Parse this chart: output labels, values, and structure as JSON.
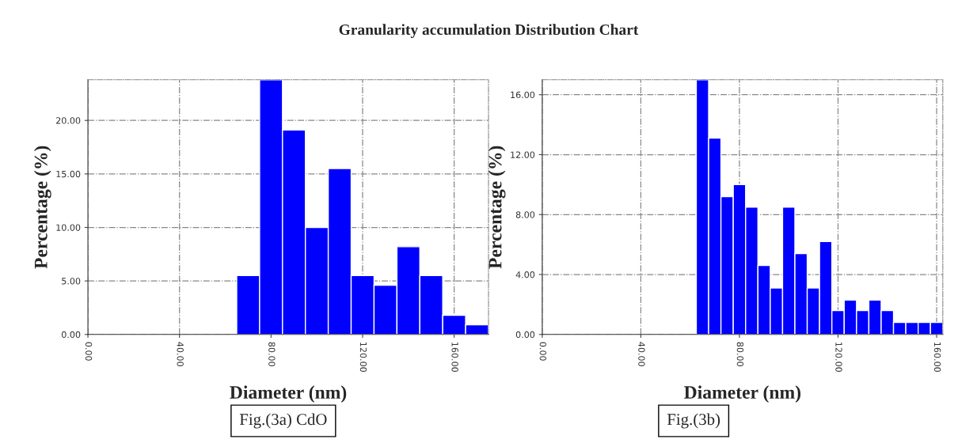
{
  "chart_data": [
    {
      "type": "histogram",
      "title": "Granularity accumulation Distribution Chart",
      "xlabel": "Diameter (nm)",
      "ylabel": "Percentage (%)",
      "bins": [
        65,
        75,
        85,
        95,
        105,
        115,
        125,
        135,
        145,
        155,
        165,
        175
      ],
      "values": [
        5.5,
        23.8,
        19.1,
        10,
        15.5,
        5.5,
        4.6,
        8.2,
        5.5,
        1.8,
        0.9
      ],
      "color": "#0000ff",
      "xlim": [
        0,
        175
      ],
      "ylim": [
        0,
        23.8
      ],
      "xticks": [
        {
          "value": 0,
          "label": "0.00"
        },
        {
          "value": 40,
          "label": "40.00"
        },
        {
          "value": 80,
          "label": "80.00"
        },
        {
          "value": 120,
          "label": "120.00"
        },
        {
          "value": 160,
          "label": "160.00"
        }
      ],
      "yticks": [
        {
          "value": 0,
          "label": "0.00"
        },
        {
          "value": 5,
          "label": "5.00"
        },
        {
          "value": 10,
          "label": "10.00"
        },
        {
          "value": 15,
          "label": "15.00"
        },
        {
          "value": 20,
          "label": "20.00"
        }
      ],
      "grid": true,
      "annotations": [
        "Fig.(3a) CdO"
      ]
    },
    {
      "type": "histogram",
      "xlabel": "Diameter (nm)",
      "ylabel": "Percentage (%)",
      "bins": [
        62.5,
        67.5,
        72.5,
        77.5,
        82.5,
        87.5,
        92.5,
        97.5,
        102.5,
        107.5,
        112.5,
        117.5,
        122.5,
        127.5,
        132.5,
        137.5,
        142.5,
        147.5,
        152.5,
        157.5,
        162.5
      ],
      "values": [
        17.0,
        13.1,
        9.2,
        10.0,
        8.5,
        4.6,
        3.1,
        8.5,
        5.4,
        3.1,
        6.2,
        1.6,
        2.3,
        1.6,
        2.3,
        1.6,
        0.8,
        0.8,
        0.8,
        0.8
      ],
      "color": "#0000ff",
      "xlim": [
        0,
        162.5
      ],
      "ylim": [
        0,
        17.0
      ],
      "xticks": [
        {
          "value": 0,
          "label": "0.00"
        },
        {
          "value": 40,
          "label": "40.00"
        },
        {
          "value": 80,
          "label": "80.00"
        },
        {
          "value": 120,
          "label": "120.00"
        },
        {
          "value": 160,
          "label": "160.00"
        }
      ],
      "yticks": [
        {
          "value": 0,
          "label": "0.00"
        },
        {
          "value": 4,
          "label": "4.00"
        },
        {
          "value": 8,
          "label": "8.00"
        },
        {
          "value": 12,
          "label": "12.00"
        },
        {
          "value": 16,
          "label": "16.00"
        }
      ],
      "grid": true,
      "annotations": [
        "Fig.(3b)"
      ]
    }
  ]
}
